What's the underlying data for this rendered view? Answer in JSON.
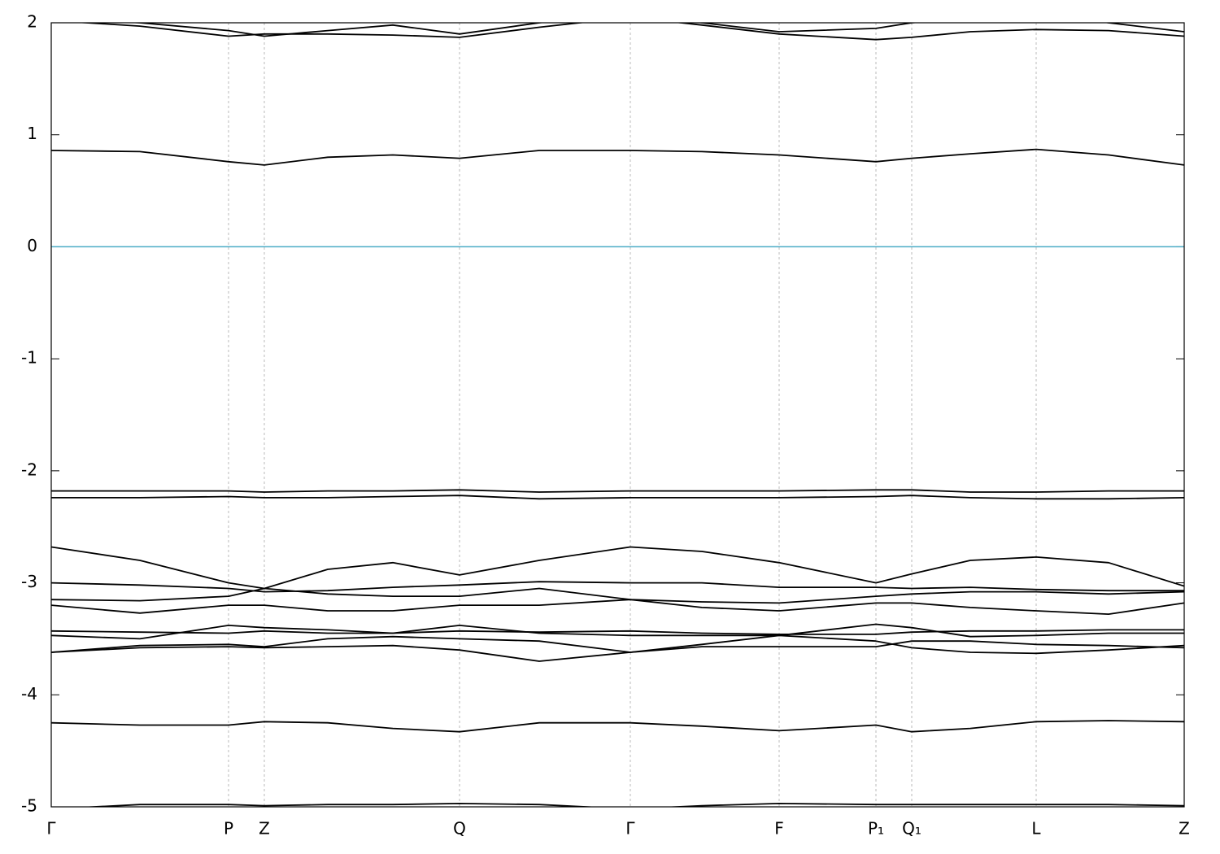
{
  "chart_data": {
    "type": "line",
    "xlim": [
      0,
      1393
    ],
    "xticks": [
      {
        "value": 0,
        "label": "Γ"
      },
      {
        "value": 218,
        "label": "P"
      },
      {
        "value": 262,
        "label": "Z"
      },
      {
        "value": 502,
        "label": "Q"
      },
      {
        "value": 712,
        "label": "Γ"
      },
      {
        "value": 895,
        "label": "F"
      },
      {
        "value": 1014,
        "label": "P₁"
      },
      {
        "value": 1058,
        "label": "Q₁"
      },
      {
        "value": 1211,
        "label": "L"
      },
      {
        "value": 1393,
        "label": "Z"
      }
    ],
    "ylim": [
      -5,
      2
    ],
    "yticks": [
      -5,
      -4,
      -3,
      -2,
      -1,
      0,
      1,
      2
    ],
    "fermi_level": 0,
    "fermi_color": "#4bacc6",
    "grid": true,
    "x": [
      0,
      109,
      218,
      262,
      340,
      420,
      502,
      600,
      712,
      800,
      895,
      1014,
      1058,
      1130,
      1211,
      1300,
      1393
    ],
    "series": [
      {
        "color": "#000000",
        "values": [
          0.86,
          0.85,
          0.76,
          0.73,
          0.8,
          0.82,
          0.79,
          0.86,
          0.86,
          0.85,
          0.82,
          0.76,
          0.79,
          0.83,
          0.87,
          0.82,
          0.73
        ]
      },
      {
        "color": "#000000",
        "values": [
          -2.18,
          -2.18,
          -2.18,
          -2.19,
          -2.18,
          -2.18,
          -2.17,
          -2.19,
          -2.18,
          -2.18,
          -2.18,
          -2.17,
          -2.17,
          -2.19,
          -2.19,
          -2.18,
          -2.18
        ]
      },
      {
        "color": "#000000",
        "values": [
          -2.24,
          -2.24,
          -2.23,
          -2.24,
          -2.24,
          -2.23,
          -2.22,
          -2.25,
          -2.24,
          -2.24,
          -2.24,
          -2.23,
          -2.22,
          -2.24,
          -2.25,
          -2.25,
          -2.24
        ]
      },
      {
        "color": "#000000",
        "values": [
          -2.68,
          -2.8,
          -3.0,
          -3.05,
          -2.88,
          -2.82,
          -2.93,
          -2.8,
          -2.68,
          -2.72,
          -2.82,
          -3.0,
          -2.92,
          -2.8,
          -2.77,
          -2.82,
          -3.03
        ]
      },
      {
        "color": "#000000",
        "values": [
          -3.0,
          -3.02,
          -3.05,
          -3.08,
          -3.07,
          -3.04,
          -3.02,
          -2.99,
          -3.0,
          -3.0,
          -3.04,
          -3.04,
          -3.05,
          -3.04,
          -3.06,
          -3.07,
          -3.07
        ]
      },
      {
        "color": "#000000",
        "values": [
          -3.15,
          -3.16,
          -3.12,
          -3.05,
          -3.1,
          -3.12,
          -3.12,
          -3.05,
          -3.15,
          -3.17,
          -3.18,
          -3.12,
          -3.1,
          -3.08,
          -3.08,
          -3.1,
          -3.08
        ]
      },
      {
        "color": "#000000",
        "values": [
          -3.2,
          -3.27,
          -3.2,
          -3.2,
          -3.25,
          -3.25,
          -3.2,
          -3.2,
          -3.15,
          -3.22,
          -3.25,
          -3.18,
          -3.18,
          -3.22,
          -3.25,
          -3.28,
          -3.18
        ]
      },
      {
        "color": "#000000",
        "values": [
          -3.43,
          -3.44,
          -3.45,
          -3.43,
          -3.45,
          -3.45,
          -3.43,
          -3.44,
          -3.43,
          -3.45,
          -3.46,
          -3.46,
          -3.44,
          -3.43,
          -3.43,
          -3.42,
          -3.42
        ]
      },
      {
        "color": "#000000",
        "values": [
          -3.47,
          -3.5,
          -3.38,
          -3.4,
          -3.42,
          -3.45,
          -3.38,
          -3.45,
          -3.47,
          -3.47,
          -3.47,
          -3.37,
          -3.4,
          -3.48,
          -3.47,
          -3.45,
          -3.45
        ]
      },
      {
        "color": "#000000",
        "values": [
          -3.62,
          -3.56,
          -3.55,
          -3.57,
          -3.5,
          -3.48,
          -3.5,
          -3.52,
          -3.62,
          -3.55,
          -3.47,
          -3.52,
          -3.58,
          -3.62,
          -3.63,
          -3.6,
          -3.56
        ]
      },
      {
        "color": "#000000",
        "values": [
          -3.62,
          -3.58,
          -3.57,
          -3.58,
          -3.57,
          -3.56,
          -3.6,
          -3.7,
          -3.62,
          -3.57,
          -3.57,
          -3.57,
          -3.52,
          -3.52,
          -3.55,
          -3.56,
          -3.58
        ]
      },
      {
        "color": "#000000",
        "values": [
          -4.25,
          -4.27,
          -4.27,
          -4.24,
          -4.25,
          -4.3,
          -4.33,
          -4.25,
          -4.25,
          -4.28,
          -4.32,
          -4.27,
          -4.33,
          -4.3,
          -4.24,
          -4.23,
          -4.24
        ]
      },
      {
        "color": "#000000",
        "values": [
          -5.02,
          -4.98,
          -4.98,
          -4.99,
          -4.98,
          -4.98,
          -4.97,
          -4.98,
          -5.02,
          -4.99,
          -4.97,
          -4.98,
          -4.98,
          -4.98,
          -4.98,
          -4.98,
          -4.99
        ]
      },
      {
        "color": "#000000",
        "values": [
          2.02,
          1.97,
          1.88,
          1.9,
          1.9,
          1.89,
          1.87,
          1.96,
          2.05,
          1.98,
          1.9,
          1.85,
          1.87,
          1.92,
          1.94,
          1.93,
          1.88
        ]
      },
      {
        "color": "#000000",
        "values": [
          2.05,
          2.0,
          1.93,
          1.88,
          1.93,
          1.98,
          1.9,
          2.0,
          2.1,
          2.0,
          1.92,
          1.95,
          2.0,
          2.05,
          2.1,
          2.0,
          1.92
        ]
      }
    ]
  }
}
